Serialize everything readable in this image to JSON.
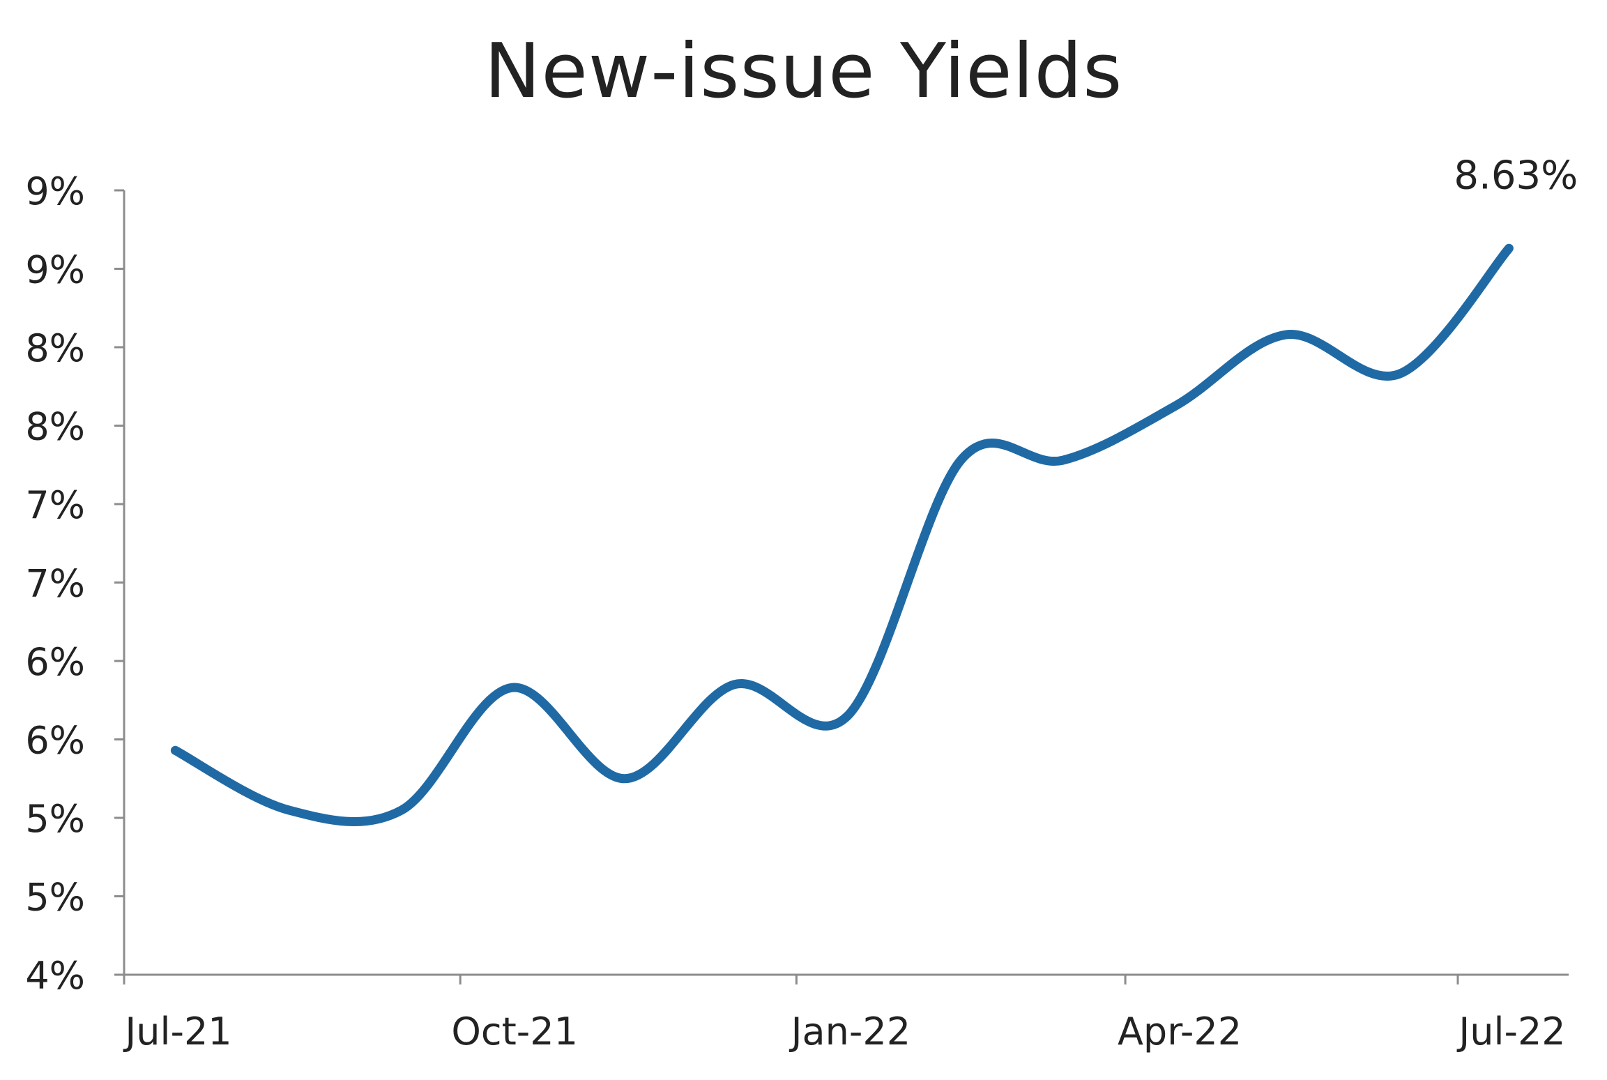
{
  "chart_data": {
    "type": "line",
    "title": "New-issue Yields",
    "xlabel": "",
    "ylabel": "",
    "x_ticks": [
      "Jul-21",
      "Oct-21",
      "Jan-22",
      "Apr-22",
      "Jul-22"
    ],
    "y_ticks": [
      "4%",
      "5%",
      "5%",
      "6%",
      "6%",
      "7%",
      "7%",
      "8%",
      "8%",
      "9%",
      "9%"
    ],
    "ylim": [
      4.0,
      9.0
    ],
    "grid": false,
    "legend": "none",
    "series": [
      {
        "color": "#1f6aa5",
        "x": [
          "2021-07-15",
          "2021-08-15",
          "2021-09-15",
          "2021-10-15",
          "2021-11-15",
          "2021-12-15",
          "2022-01-15",
          "2022-02-15",
          "2022-03-15",
          "2022-04-15",
          "2022-05-15",
          "2022-06-15",
          "2022-07-15"
        ],
        "values": [
          5.43,
          5.05,
          5.05,
          5.83,
          5.25,
          5.85,
          5.65,
          7.28,
          7.28,
          7.63,
          8.08,
          7.83,
          8.63
        ]
      }
    ],
    "annotations": [
      {
        "text": "8.63%",
        "series_index": 0,
        "point_index": 12
      }
    ]
  }
}
